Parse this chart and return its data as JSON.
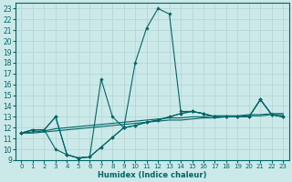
{
  "xlabel": "Humidex (Indice chaleur)",
  "background_color": "#cce9e9",
  "grid_color": "#b8d8d8",
  "line_color": "#006666",
  "xlim": [
    -0.5,
    23.5
  ],
  "ylim": [
    9,
    23.5
  ],
  "xticks": [
    0,
    1,
    2,
    3,
    4,
    5,
    6,
    7,
    8,
    9,
    10,
    11,
    12,
    13,
    14,
    15,
    16,
    17,
    18,
    19,
    20,
    21,
    22,
    23
  ],
  "yticks": [
    9,
    10,
    11,
    12,
    13,
    14,
    15,
    16,
    17,
    18,
    19,
    20,
    21,
    22,
    23
  ],
  "series_markers": [
    {
      "x": [
        0,
        1,
        2,
        3,
        4,
        5,
        6,
        7,
        8,
        9,
        10,
        11,
        12,
        13,
        14,
        15,
        16,
        17,
        18,
        19,
        20,
        21,
        22,
        23
      ],
      "y": [
        11.5,
        11.8,
        11.8,
        13.0,
        9.5,
        9.2,
        9.3,
        10.2,
        11.1,
        12.0,
        18.0,
        21.2,
        23.0,
        22.5,
        13.5,
        13.5,
        13.3,
        13.0,
        13.0,
        13.0,
        13.0,
        14.6,
        13.2,
        13.0
      ]
    },
    {
      "x": [
        0,
        1,
        2,
        3,
        4,
        5,
        6,
        7,
        8,
        9,
        10,
        11,
        12,
        13,
        14,
        15,
        16,
        17,
        18,
        19,
        20,
        21,
        22,
        23
      ],
      "y": [
        11.5,
        11.8,
        11.8,
        13.0,
        9.5,
        9.2,
        9.3,
        16.5,
        13.0,
        12.0,
        12.2,
        12.5,
        12.7,
        13.0,
        13.3,
        13.5,
        13.3,
        13.0,
        13.0,
        13.0,
        13.0,
        14.6,
        13.2,
        13.0
      ]
    },
    {
      "x": [
        0,
        1,
        2,
        3,
        4,
        5,
        6,
        7,
        8,
        9,
        10,
        11,
        12,
        13,
        14,
        15,
        16,
        17,
        18,
        19,
        20,
        21,
        22,
        23
      ],
      "y": [
        11.5,
        11.8,
        11.8,
        10.0,
        9.5,
        9.2,
        9.3,
        10.2,
        11.1,
        12.0,
        12.2,
        12.5,
        12.7,
        13.0,
        13.3,
        13.5,
        13.3,
        13.0,
        13.0,
        13.0,
        13.0,
        14.6,
        13.2,
        13.0
      ]
    }
  ],
  "series_smooth": [
    {
      "x": [
        0,
        1,
        2,
        3,
        4,
        5,
        6,
        7,
        8,
        9,
        10,
        11,
        12,
        13,
        14,
        15,
        16,
        17,
        18,
        19,
        20,
        21,
        22,
        23
      ],
      "y": [
        11.5,
        11.6,
        11.7,
        11.9,
        12.0,
        12.1,
        12.2,
        12.3,
        12.4,
        12.5,
        12.6,
        12.7,
        12.8,
        12.9,
        12.9,
        13.0,
        13.0,
        13.1,
        13.1,
        13.1,
        13.2,
        13.2,
        13.3,
        13.3
      ]
    },
    {
      "x": [
        0,
        1,
        2,
        3,
        4,
        5,
        6,
        7,
        8,
        9,
        10,
        11,
        12,
        13,
        14,
        15,
        16,
        17,
        18,
        19,
        20,
        21,
        22,
        23
      ],
      "y": [
        11.5,
        11.5,
        11.6,
        11.7,
        11.8,
        11.9,
        12.0,
        12.1,
        12.2,
        12.3,
        12.4,
        12.5,
        12.6,
        12.7,
        12.7,
        12.8,
        12.9,
        12.9,
        13.0,
        13.0,
        13.1,
        13.1,
        13.2,
        13.2
      ]
    }
  ]
}
